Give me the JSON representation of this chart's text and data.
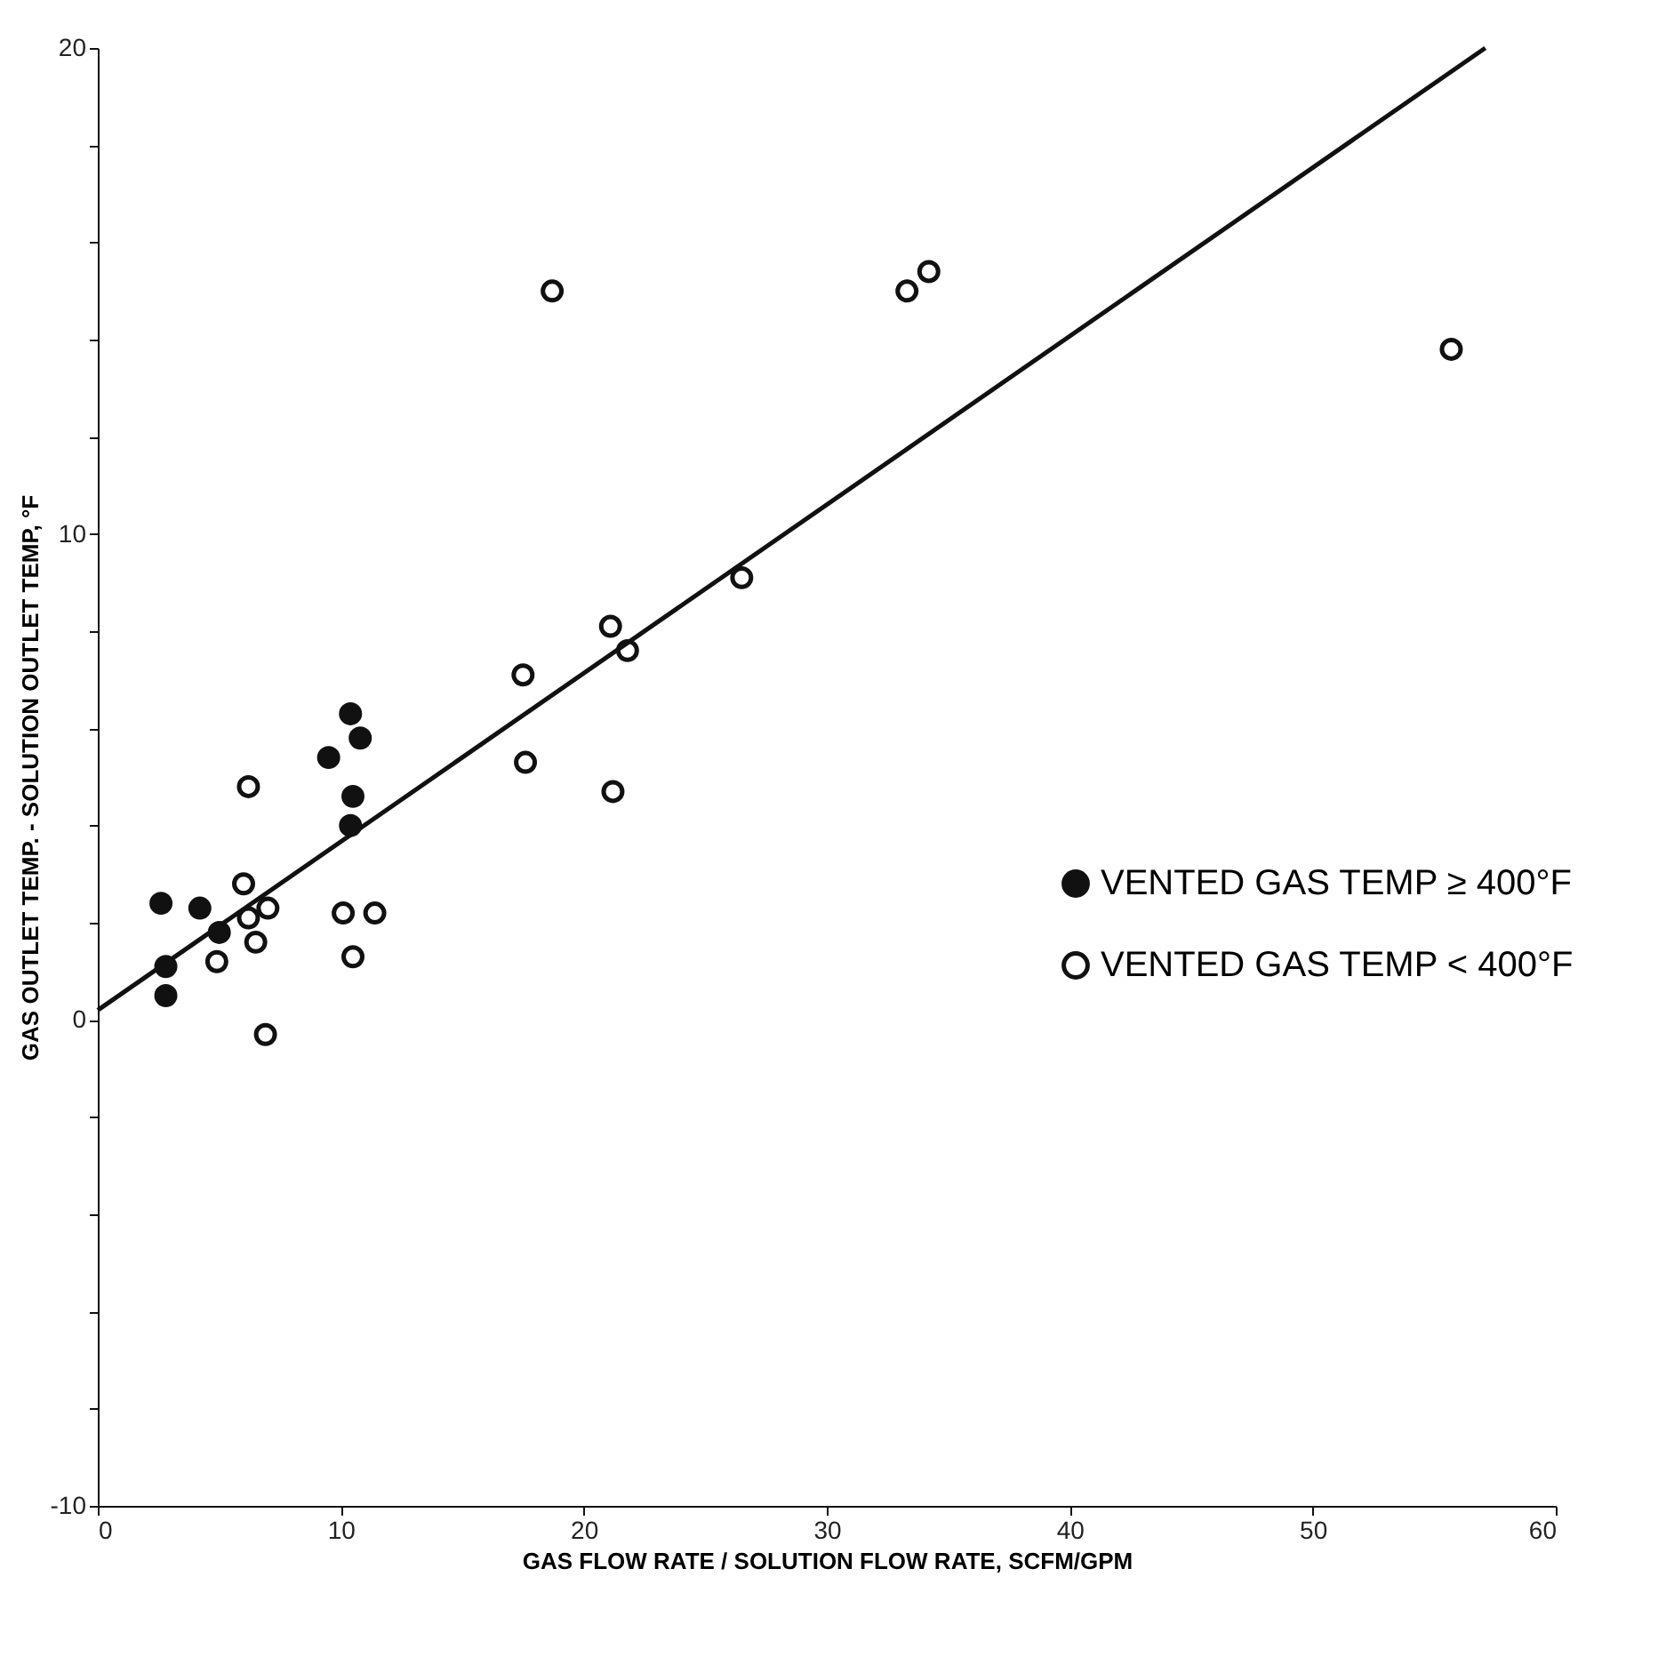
{
  "chart_data": {
    "type": "scatter",
    "xlabel": "GAS FLOW RATE / SOLUTION FLOW RATE,  SCFM/GPM",
    "ylabel": "GAS OUTLET TEMP. - SOLUTION OUTLET TEMP, °F",
    "xlim": [
      0,
      60
    ],
    "ylim": [
      -10,
      20
    ],
    "xticks": [
      0,
      10,
      20,
      30,
      40,
      50,
      60
    ],
    "yticks": [
      -10,
      {
        "value": -8,
        "label": null
      },
      {
        "value": -6,
        "label": null
      },
      {
        "value": -4,
        "label": null
      },
      {
        "value": -2,
        "label": null
      },
      0,
      {
        "value": 2,
        "label": null
      },
      {
        "value": 4,
        "label": null
      },
      {
        "value": 6,
        "label": null
      },
      {
        "value": 8,
        "label": null
      },
      10,
      {
        "value": 12,
        "label": null
      },
      {
        "value": 14,
        "label": null
      },
      {
        "value": 16,
        "label": null
      },
      {
        "value": 18,
        "label": null
      },
      20
    ],
    "grid": false,
    "legend": "right",
    "series": [
      {
        "name": "VENTED GAS TEMP ≥ 400°F",
        "color": "#111111",
        "marker": "circle",
        "x": [
          2.6,
          4.2,
          5.0,
          2.8,
          2.8,
          10.4,
          10.8,
          9.5,
          10.5,
          10.4
        ],
        "values": [
          2.4,
          2.3,
          1.8,
          1.1,
          0.5,
          6.3,
          5.8,
          5.4,
          4.6,
          4.0
        ]
      },
      {
        "name": "VENTED GAS TEMP < 400°F",
        "color": "#111111",
        "marker": "circle_open",
        "x": [
          6.2,
          6.0,
          7.0,
          6.2,
          6.5,
          4.9,
          6.9,
          10.1,
          11.4,
          10.5,
          17.6,
          21.2,
          18.7,
          33.3,
          34.2,
          55.7,
          26.5,
          21.1,
          21.8,
          17.5
        ],
        "values": [
          4.8,
          2.8,
          2.3,
          2.1,
          1.6,
          1.2,
          -0.3,
          2.2,
          2.2,
          1.3,
          5.3,
          4.7,
          15.0,
          15.0,
          15.4,
          13.8,
          9.1,
          8.1,
          7.6,
          7.1
        ]
      },
      {
        "type": "line",
        "color": "#111111",
        "x": [
          0,
          57.1
        ],
        "values": [
          0.2,
          20.0
        ]
      }
    ]
  }
}
